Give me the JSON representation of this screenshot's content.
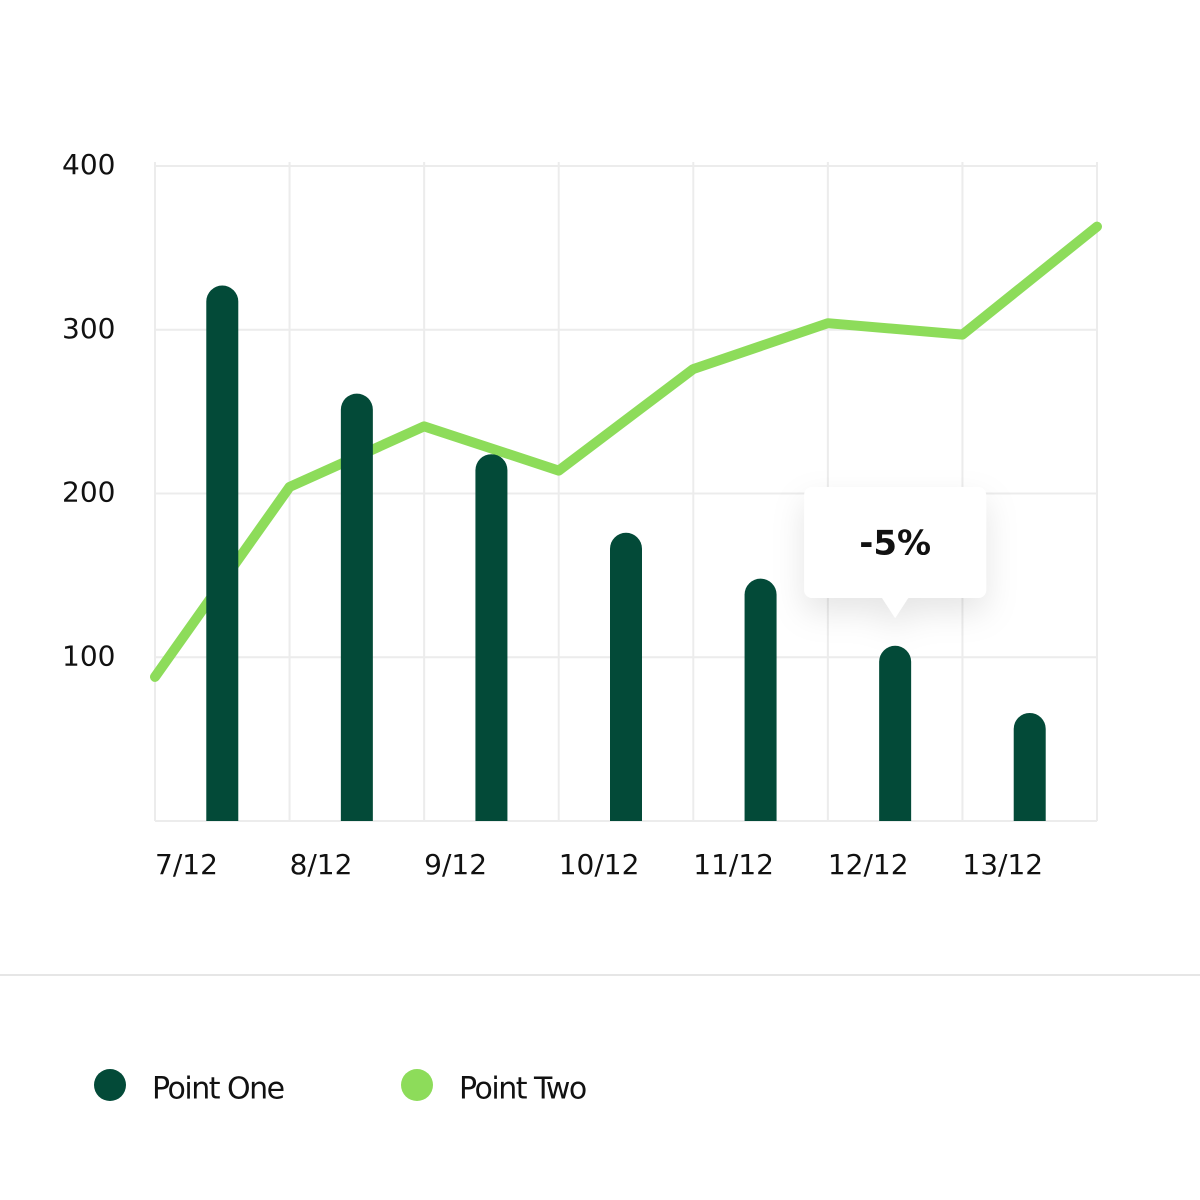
{
  "chart_data": {
    "type": "bar_line",
    "categories": [
      "7/12",
      "8/12",
      "9/12",
      "10/12",
      "11/12",
      "12/12",
      "13/12",
      null
    ],
    "series": [
      {
        "name": "Point One",
        "type": "bar",
        "color": "#034a38",
        "values": [
          327,
          261,
          224,
          176,
          148,
          107,
          66,
          null
        ]
      },
      {
        "name": "Point Two",
        "type": "line",
        "color": "#8ddc5a",
        "values": [
          88,
          204,
          241,
          214,
          276,
          304,
          297,
          363
        ]
      }
    ],
    "annotation": "-5%",
    "ylim": [
      0,
      400
    ],
    "yticks": [
      100,
      200,
      300,
      400
    ],
    "grid": true
  }
}
